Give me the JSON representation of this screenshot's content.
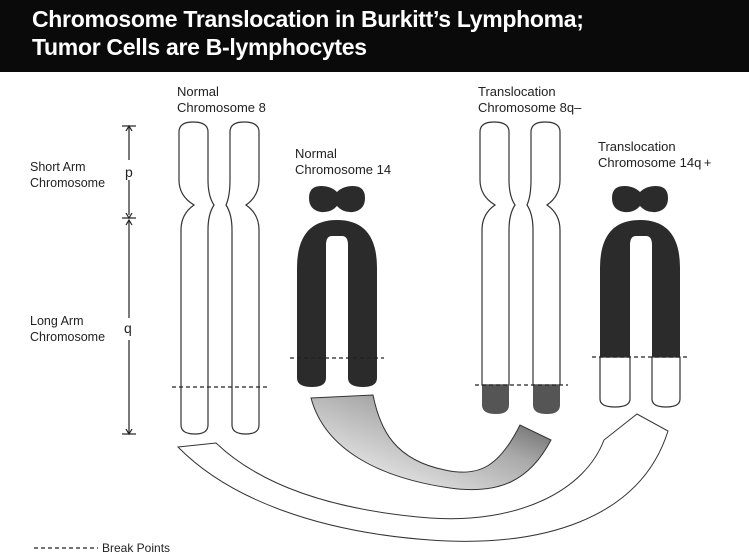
{
  "header": {
    "title_line1": "Chromosome Translocation in Burkitt’s Lymphoma;",
    "title_line2": "Tumor Cells are B-lymphocytes"
  },
  "labels": {
    "normal8": [
      "Normal",
      "Chromosome 8"
    ],
    "normal14": [
      "Normal",
      "Chromosome 14"
    ],
    "trans8": [
      "Translocation",
      "Chromosome 8q–"
    ],
    "trans14": [
      "Translocation",
      "Chromosome 14q +"
    ],
    "short_arm": [
      "Short Arm",
      "Chromosome"
    ],
    "long_arm": [
      "Long Arm",
      "Chromosome"
    ],
    "p": "p",
    "q": "q"
  },
  "legend": {
    "break_points": "Break Points"
  },
  "colors": {
    "dark": "#2b2b2b",
    "outline": "#333333",
    "header_bg": "#0a0a0a"
  }
}
